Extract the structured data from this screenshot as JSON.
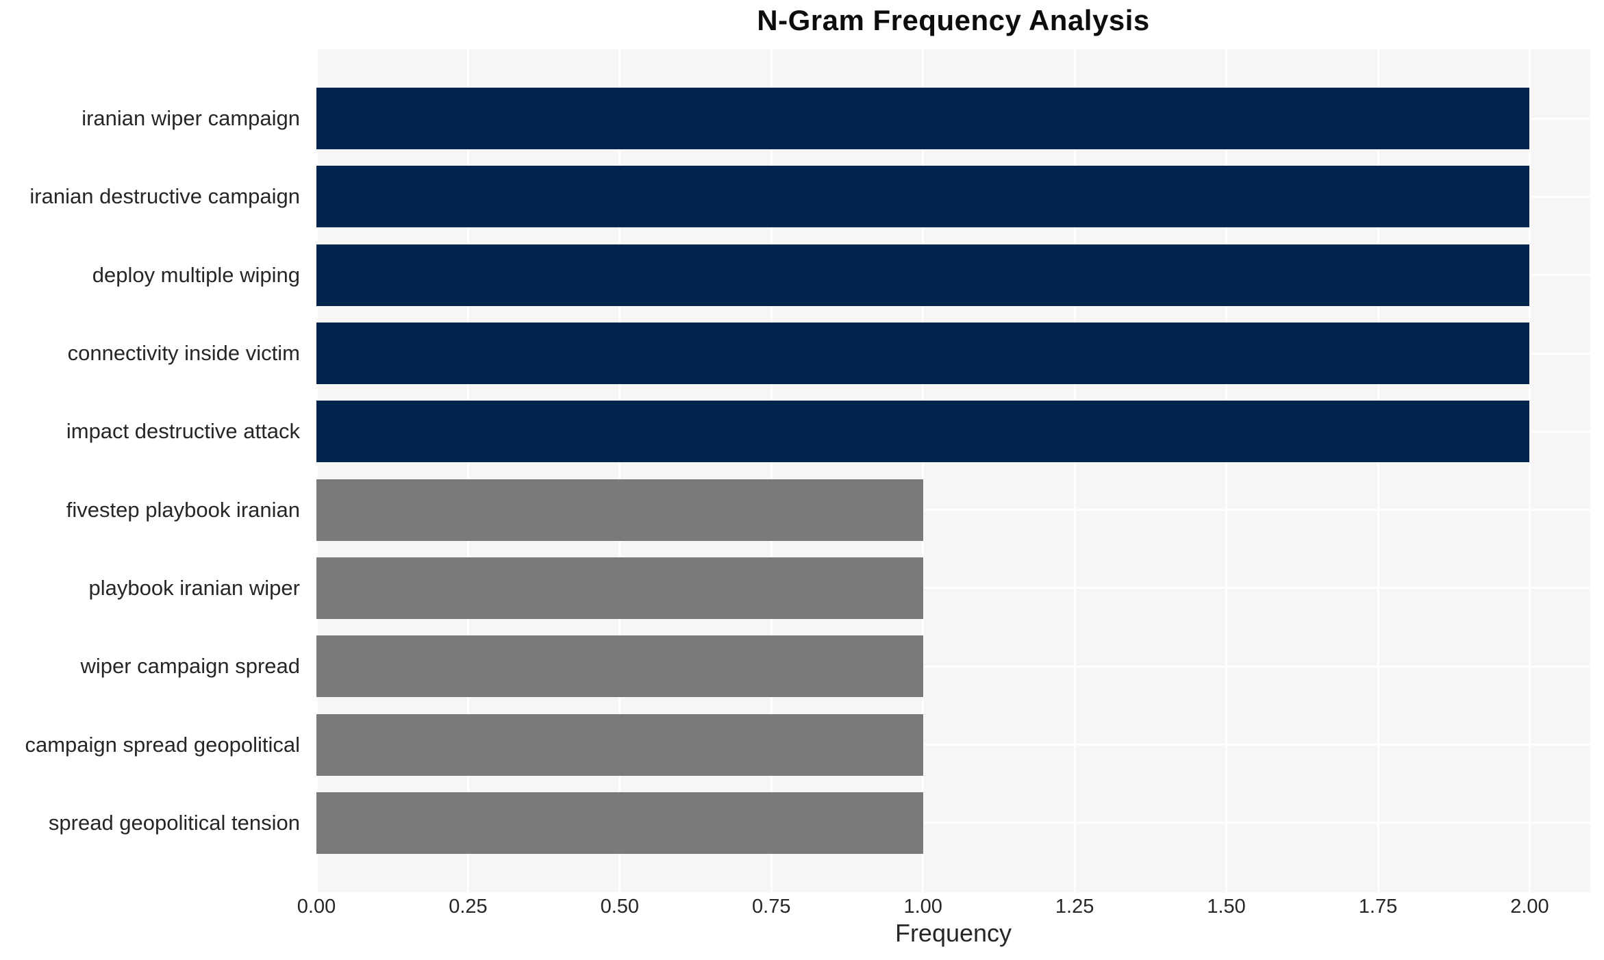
{
  "title": "N-Gram Frequency Analysis",
  "colors": {
    "figure_bg": "#ffffff",
    "plot_bg": "#f6f6f7",
    "grid": "#ffffff",
    "bar_navy": "#02254d",
    "bar_gray": "#7a7a78",
    "text": "#262626",
    "title_text": "#0d0d0d"
  },
  "chart_data": {
    "type": "bar",
    "orientation": "horizontal",
    "title": "N-Gram Frequency Analysis",
    "xlabel": "Frequency",
    "ylabel": "",
    "categories": [
      "iranian wiper campaign",
      "iranian destructive campaign",
      "deploy multiple wiping",
      "connectivity inside victim",
      "impact destructive attack",
      "fivestep playbook iranian",
      "playbook iranian wiper",
      "wiper campaign spread",
      "campaign spread geopolitical",
      "spread geopolitical tension"
    ],
    "values": [
      2,
      2,
      2,
      2,
      2,
      1,
      1,
      1,
      1,
      1
    ],
    "bar_colors": [
      "#02254d",
      "#02254d",
      "#02254d",
      "#02254d",
      "#02254d",
      "#7a7a78",
      "#7a7a78",
      "#7a7a78",
      "#7a7a78",
      "#7a7a78"
    ],
    "xlim": [
      0,
      2.1
    ],
    "xticks": [
      0.0,
      0.25,
      0.5,
      0.75,
      1.0,
      1.25,
      1.5,
      1.75,
      2.0
    ],
    "xtick_labels": [
      "0.00",
      "0.25",
      "0.50",
      "0.75",
      "1.00",
      "1.25",
      "1.50",
      "1.75",
      "2.00"
    ],
    "grid": true,
    "legend": false
  }
}
